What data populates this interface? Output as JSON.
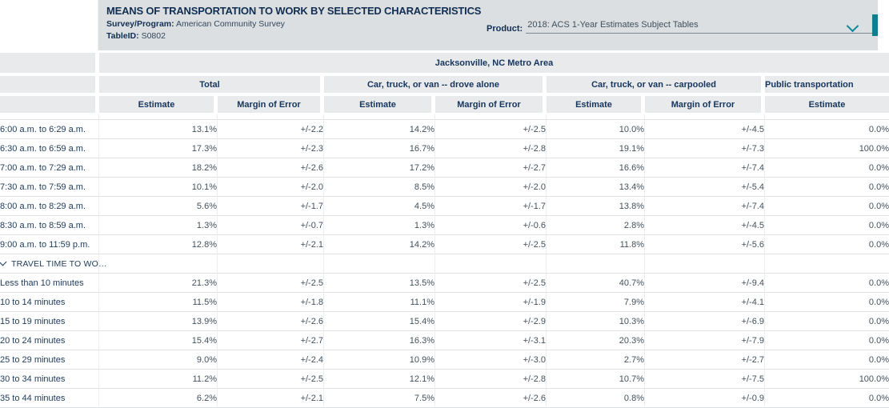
{
  "header": {
    "title": "MEANS OF TRANSPORTATION TO WORK BY SELECTED CHARACTERISTICS",
    "survey_program_label": "Survey/Program:",
    "survey_program_value": "American Community Survey",
    "table_id_label": "TableID:",
    "table_id_value": "S0802",
    "product_label": "Product:",
    "product_value": "2018: ACS 1-Year Estimates Subject Tables"
  },
  "table": {
    "geo_header": "Jacksonville, NC Metro Area",
    "column_groups": [
      {
        "label": "Total",
        "subcolumns": [
          "Estimate",
          "Margin of Error"
        ]
      },
      {
        "label": "Car, truck, or van -- drove alone",
        "subcolumns": [
          "Estimate",
          "Margin of Error"
        ]
      },
      {
        "label": "Car, truck, or van -- carpooled",
        "subcolumns": [
          "Estimate",
          "Margin of Error"
        ]
      },
      {
        "label": "Public transportation",
        "subcolumns": [
          "Estimate"
        ]
      }
    ],
    "column_keys": [
      "total-estimate",
      "total-margin-of-error",
      "drove-alone-estimate",
      "drove-alone-margin-of-error",
      "carpooled-estimate",
      "carpooled-margin-of-error",
      "public-transportation-estimate"
    ],
    "rows": [
      {
        "type": "data",
        "label": "6:00 a.m. to 6:29 a.m.",
        "values": [
          "13.1%",
          "+/-2.2",
          "14.2%",
          "+/-2.5",
          "10.0%",
          "+/-4.5",
          "0.0%"
        ]
      },
      {
        "type": "data",
        "label": "6:30 a.m. to 6:59 a.m.",
        "values": [
          "17.3%",
          "+/-2.3",
          "16.7%",
          "+/-2.8",
          "19.1%",
          "+/-7.3",
          "100.0%"
        ]
      },
      {
        "type": "data",
        "label": "7:00 a.m. to 7:29 a.m.",
        "values": [
          "18.2%",
          "+/-2.6",
          "17.2%",
          "+/-2.7",
          "16.6%",
          "+/-7.4",
          "0.0%"
        ]
      },
      {
        "type": "data",
        "label": "7:30 a.m. to 7:59 a.m.",
        "values": [
          "10.1%",
          "+/-2.0",
          "8.5%",
          "+/-2.0",
          "13.4%",
          "+/-5.4",
          "0.0%"
        ]
      },
      {
        "type": "data",
        "label": "8:00 a.m. to 8:29 a.m.",
        "values": [
          "5.6%",
          "+/-1.7",
          "4.5%",
          "+/-1.7",
          "13.8%",
          "+/-7.4",
          "0.0%"
        ]
      },
      {
        "type": "data",
        "label": "8:30 a.m. to 8:59 a.m.",
        "values": [
          "1.3%",
          "+/-0.7",
          "1.3%",
          "+/-0.6",
          "2.8%",
          "+/-4.5",
          "0.0%"
        ]
      },
      {
        "type": "data",
        "label": "9:00 a.m. to 11:59 p.m.",
        "values": [
          "12.8%",
          "+/-2.1",
          "14.2%",
          "+/-2.5",
          "11.8%",
          "+/-5.6",
          "0.0%"
        ]
      },
      {
        "type": "section",
        "label": "TRAVEL TIME TO WO…"
      },
      {
        "type": "data",
        "label": "Less than 10 minutes",
        "values": [
          "21.3%",
          "+/-2.5",
          "13.5%",
          "+/-2.5",
          "40.7%",
          "+/-9.4",
          "0.0%"
        ]
      },
      {
        "type": "data",
        "label": "10 to 14 minutes",
        "values": [
          "11.5%",
          "+/-1.8",
          "11.1%",
          "+/-1.9",
          "7.9%",
          "+/-4.1",
          "0.0%"
        ]
      },
      {
        "type": "data",
        "label": "15 to 19 minutes",
        "values": [
          "13.9%",
          "+/-2.6",
          "15.4%",
          "+/-2.9",
          "10.3%",
          "+/-6.9",
          "0.0%"
        ]
      },
      {
        "type": "data",
        "label": "20 to 24 minutes",
        "values": [
          "15.4%",
          "+/-2.7",
          "16.3%",
          "+/-3.1",
          "20.3%",
          "+/-7.9",
          "0.0%"
        ]
      },
      {
        "type": "data",
        "label": "25 to 29 minutes",
        "values": [
          "9.0%",
          "+/-2.4",
          "10.9%",
          "+/-3.0",
          "2.7%",
          "+/-2.7",
          "0.0%"
        ]
      },
      {
        "type": "data",
        "label": "30 to 34 minutes",
        "values": [
          "11.2%",
          "+/-2.5",
          "12.1%",
          "+/-2.8",
          "10.7%",
          "+/-7.5",
          "100.0%"
        ]
      },
      {
        "type": "data",
        "label": "35 to 44 minutes",
        "values": [
          "6.2%",
          "+/-2.1",
          "7.5%",
          "+/-2.6",
          "0.8%",
          "+/-0.9",
          "0.0%"
        ]
      }
    ]
  },
  "colors": {
    "accent_teal": "#0d7f91",
    "navy": "#112e51",
    "band_gray": "#dcdfe1",
    "header_cell_gray": "#e8eaeb"
  }
}
